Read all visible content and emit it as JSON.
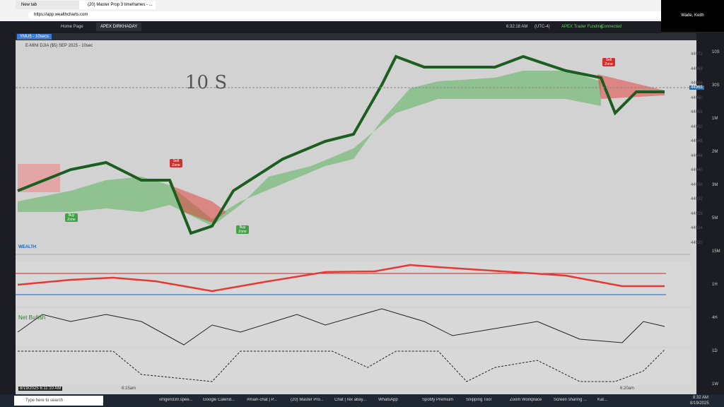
{
  "browser": {
    "tabs": [
      "New tab",
      "(20) Master Prop 3 timeframes - ..."
    ],
    "url": "https://app.wealthcharts.com"
  },
  "user": "Wade, Keith",
  "app": {
    "tabs": [
      "Home Page",
      "APEX DIRKHADAY"
    ],
    "time": "6:32:18 AM",
    "timezone": "(UTC-4)",
    "account": "APEX Trader Funding",
    "status": "Connected"
  },
  "chart": {
    "symbol_tab": "YMU5 - 10secs",
    "title": "E-MINI DJIA ($5) SEP 2025 - 10sec",
    "annotation": "10 S",
    "zones": [
      "Sell Zone",
      "Buy Zone",
      "Buy Zone",
      "Sell Zone"
    ],
    "price_labels": [
      "44972",
      "44968",
      "44964",
      "44960",
      "44956",
      "44952",
      "44948",
      "44944",
      "44940",
      "44936",
      "44932",
      "44928",
      "44924",
      "44920"
    ],
    "last_price": "44965",
    "indicator_name": "WEALTH",
    "sentiment": "Net Bullish",
    "timeframes": [
      "10S",
      "30S",
      "1M",
      "2M",
      "3M",
      "5M",
      "15M",
      "1H",
      "4H",
      "1D",
      "1W"
    ],
    "start_time": "8/19/2025 6:11:10 AM",
    "time_labels": [
      "6:15am",
      "6:20am"
    ]
  },
  "taskbar": {
    "search": "Type here to search",
    "apps": [
      "vmgen330.spee...",
      "Google Calend...",
      "#main-chat | P...",
      "(20) Master Pro...",
      "Chat | rex abay...",
      "WhatsApp",
      "Spotify Premium",
      "Snipping Tool",
      "Zoom Workplace",
      "Screen sharing ...",
      "Kat..."
    ],
    "time": "8:32 AM",
    "date": "8/19/2025"
  }
}
